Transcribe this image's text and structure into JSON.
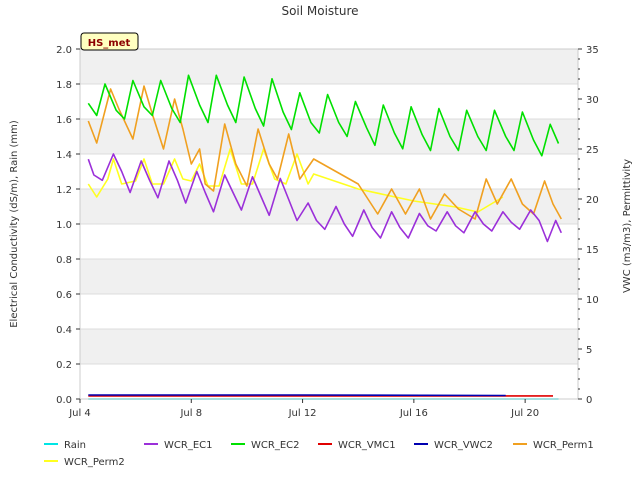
{
  "chart_data": {
    "type": "line",
    "title": "Soil Moisture",
    "ylabel_left": "Electrical Conductivity (dS/m), Rain (mm)",
    "ylabel_right": "VWC (m3/m3), Permittivity",
    "badge": "HS_met",
    "x_ticks": [
      {
        "day": 4,
        "label": "Jul 4"
      },
      {
        "day": 8,
        "label": "Jul 8"
      },
      {
        "day": 12,
        "label": "Jul 12"
      },
      {
        "day": 16,
        "label": "Jul 16"
      },
      {
        "day": 20,
        "label": "Jul 20"
      }
    ],
    "xlim": [
      4,
      21.9
    ],
    "ylim_left": [
      0,
      2.0
    ],
    "ylim_right": [
      0,
      35
    ],
    "left_ticks": [
      "0.0",
      "0.2",
      "0.4",
      "0.6",
      "0.8",
      "1.0",
      "1.2",
      "1.4",
      "1.6",
      "1.8",
      "2.0"
    ],
    "right_ticks": [
      "0",
      "5",
      "10",
      "15",
      "20",
      "25",
      "30",
      "35"
    ],
    "series": [
      {
        "name": "Rain",
        "color": "#00e5e5",
        "axis": "left",
        "points": [
          [
            4.3,
            0.0
          ],
          [
            21.2,
            0.0
          ]
        ]
      },
      {
        "name": "WCR_EC1",
        "color": "#9b30d9",
        "axis": "left",
        "points": [
          [
            4.3,
            1.37
          ],
          [
            4.5,
            1.28
          ],
          [
            4.8,
            1.25
          ],
          [
            5.2,
            1.4
          ],
          [
            5.5,
            1.3
          ],
          [
            5.8,
            1.18
          ],
          [
            6.2,
            1.36
          ],
          [
            6.5,
            1.25
          ],
          [
            6.8,
            1.15
          ],
          [
            7.2,
            1.36
          ],
          [
            7.5,
            1.25
          ],
          [
            7.8,
            1.12
          ],
          [
            8.2,
            1.3
          ],
          [
            8.5,
            1.18
          ],
          [
            8.8,
            1.07
          ],
          [
            9.2,
            1.28
          ],
          [
            9.5,
            1.18
          ],
          [
            9.8,
            1.08
          ],
          [
            10.2,
            1.27
          ],
          [
            10.5,
            1.16
          ],
          [
            10.8,
            1.05
          ],
          [
            11.2,
            1.26
          ],
          [
            11.5,
            1.14
          ],
          [
            11.8,
            1.02
          ],
          [
            12.2,
            1.12
          ],
          [
            12.5,
            1.02
          ],
          [
            12.8,
            0.97
          ],
          [
            13.2,
            1.1
          ],
          [
            13.5,
            1.0
          ],
          [
            13.8,
            0.93
          ],
          [
            14.2,
            1.08
          ],
          [
            14.5,
            0.98
          ],
          [
            14.8,
            0.92
          ],
          [
            15.2,
            1.07
          ],
          [
            15.5,
            0.98
          ],
          [
            15.8,
            0.92
          ],
          [
            16.2,
            1.06
          ],
          [
            16.5,
            0.99
          ],
          [
            16.8,
            0.96
          ],
          [
            17.2,
            1.07
          ],
          [
            17.5,
            0.99
          ],
          [
            17.8,
            0.95
          ],
          [
            18.2,
            1.07
          ],
          [
            18.5,
            1.0
          ],
          [
            18.8,
            0.96
          ],
          [
            19.2,
            1.07
          ],
          [
            19.5,
            1.01
          ],
          [
            19.8,
            0.97
          ],
          [
            20.2,
            1.08
          ],
          [
            20.5,
            1.02
          ],
          [
            20.8,
            0.9
          ],
          [
            21.1,
            1.02
          ],
          [
            21.3,
            0.95
          ]
        ]
      },
      {
        "name": "WCR_EC2",
        "color": "#00e000",
        "axis": "left",
        "points": [
          [
            4.3,
            1.69
          ],
          [
            4.6,
            1.62
          ],
          [
            4.9,
            1.8
          ],
          [
            5.3,
            1.65
          ],
          [
            5.6,
            1.6
          ],
          [
            5.9,
            1.82
          ],
          [
            6.3,
            1.67
          ],
          [
            6.6,
            1.62
          ],
          [
            6.9,
            1.82
          ],
          [
            7.3,
            1.66
          ],
          [
            7.6,
            1.58
          ],
          [
            7.9,
            1.85
          ],
          [
            8.3,
            1.68
          ],
          [
            8.6,
            1.58
          ],
          [
            8.9,
            1.85
          ],
          [
            9.3,
            1.68
          ],
          [
            9.6,
            1.58
          ],
          [
            9.9,
            1.84
          ],
          [
            10.3,
            1.66
          ],
          [
            10.6,
            1.56
          ],
          [
            10.9,
            1.83
          ],
          [
            11.3,
            1.64
          ],
          [
            11.6,
            1.54
          ],
          [
            11.9,
            1.75
          ],
          [
            12.3,
            1.58
          ],
          [
            12.6,
            1.52
          ],
          [
            12.9,
            1.74
          ],
          [
            13.3,
            1.58
          ],
          [
            13.6,
            1.5
          ],
          [
            13.9,
            1.7
          ],
          [
            14.3,
            1.55
          ],
          [
            14.6,
            1.45
          ],
          [
            14.9,
            1.68
          ],
          [
            15.3,
            1.52
          ],
          [
            15.6,
            1.43
          ],
          [
            15.9,
            1.67
          ],
          [
            16.3,
            1.51
          ],
          [
            16.6,
            1.42
          ],
          [
            16.9,
            1.66
          ],
          [
            17.3,
            1.5
          ],
          [
            17.6,
            1.42
          ],
          [
            17.9,
            1.65
          ],
          [
            18.3,
            1.5
          ],
          [
            18.6,
            1.42
          ],
          [
            18.9,
            1.65
          ],
          [
            19.3,
            1.5
          ],
          [
            19.6,
            1.42
          ],
          [
            19.9,
            1.64
          ],
          [
            20.3,
            1.48
          ],
          [
            20.6,
            1.39
          ],
          [
            20.9,
            1.57
          ],
          [
            21.2,
            1.46
          ]
        ]
      },
      {
        "name": "WCR_VMC1",
        "color": "#e00000",
        "axis": "left",
        "points": [
          [
            4.3,
            0.018
          ],
          [
            21.0,
            0.018
          ]
        ]
      },
      {
        "name": "WCR_VWC2",
        "color": "#0000b0",
        "axis": "left",
        "points": [
          [
            4.3,
            0.023
          ],
          [
            12.0,
            0.023
          ],
          [
            19.3,
            0.02
          ]
        ]
      },
      {
        "name": "WCR_Perm1",
        "color": "#f0a020",
        "axis": "right",
        "points": [
          [
            4.3,
            27.8
          ],
          [
            4.6,
            25.6
          ],
          [
            5.1,
            31.0
          ],
          [
            5.4,
            29.0
          ],
          [
            5.9,
            26.0
          ],
          [
            6.3,
            31.3
          ],
          [
            6.6,
            28.5
          ],
          [
            7.0,
            25.0
          ],
          [
            7.4,
            30.0
          ],
          [
            7.7,
            27.0
          ],
          [
            8.0,
            23.5
          ],
          [
            8.3,
            25.0
          ],
          [
            8.5,
            21.5
          ],
          [
            8.8,
            20.8
          ],
          [
            9.2,
            27.5
          ],
          [
            9.6,
            23.5
          ],
          [
            10.0,
            21.3
          ],
          [
            10.4,
            27.0
          ],
          [
            10.8,
            23.5
          ],
          [
            11.1,
            22.0
          ],
          [
            11.5,
            26.5
          ],
          [
            11.9,
            22.0
          ],
          [
            12.4,
            24.0
          ],
          [
            14.0,
            21.5
          ],
          [
            14.7,
            18.5
          ],
          [
            15.2,
            21.0
          ],
          [
            15.7,
            18.5
          ],
          [
            16.2,
            21.0
          ],
          [
            16.6,
            18.0
          ],
          [
            17.1,
            20.5
          ],
          [
            17.6,
            19.0
          ],
          [
            18.2,
            18.0
          ],
          [
            18.6,
            22.0
          ],
          [
            19.0,
            19.5
          ],
          [
            19.5,
            22.0
          ],
          [
            19.9,
            19.5
          ],
          [
            20.3,
            18.5
          ],
          [
            20.7,
            21.8
          ],
          [
            21.0,
            19.5
          ],
          [
            21.3,
            18.0
          ]
        ]
      },
      {
        "name": "WCR_Perm2",
        "color": "#ffff20",
        "axis": "right",
        "points": [
          [
            4.3,
            21.5
          ],
          [
            4.6,
            20.2
          ],
          [
            5.0,
            22.0
          ],
          [
            5.2,
            24.0
          ],
          [
            5.5,
            21.5
          ],
          [
            6.0,
            21.8
          ],
          [
            6.3,
            24.0
          ],
          [
            6.6,
            21.5
          ],
          [
            7.0,
            21.5
          ],
          [
            7.4,
            24.0
          ],
          [
            7.7,
            22.0
          ],
          [
            8.0,
            21.8
          ],
          [
            8.3,
            23.5
          ],
          [
            8.6,
            21.3
          ],
          [
            9.0,
            21.3
          ],
          [
            9.4,
            25.0
          ],
          [
            9.8,
            21.5
          ],
          [
            10.2,
            21.5
          ],
          [
            10.6,
            25.0
          ],
          [
            11.0,
            22.0
          ],
          [
            11.4,
            21.5
          ],
          [
            11.8,
            24.5
          ],
          [
            12.2,
            21.5
          ],
          [
            12.4,
            22.5
          ],
          [
            14.0,
            21.0
          ],
          [
            16.0,
            19.8
          ],
          [
            17.5,
            19.2
          ],
          [
            18.3,
            18.7
          ],
          [
            19.2,
            20.2
          ]
        ]
      }
    ],
    "legend": {
      "row1": [
        "Rain",
        "WCR_EC1",
        "WCR_EC2",
        "WCR_VMC1",
        "WCR_VWC2",
        "WCR_Perm1"
      ],
      "row2": [
        "WCR_Perm2"
      ]
    }
  }
}
